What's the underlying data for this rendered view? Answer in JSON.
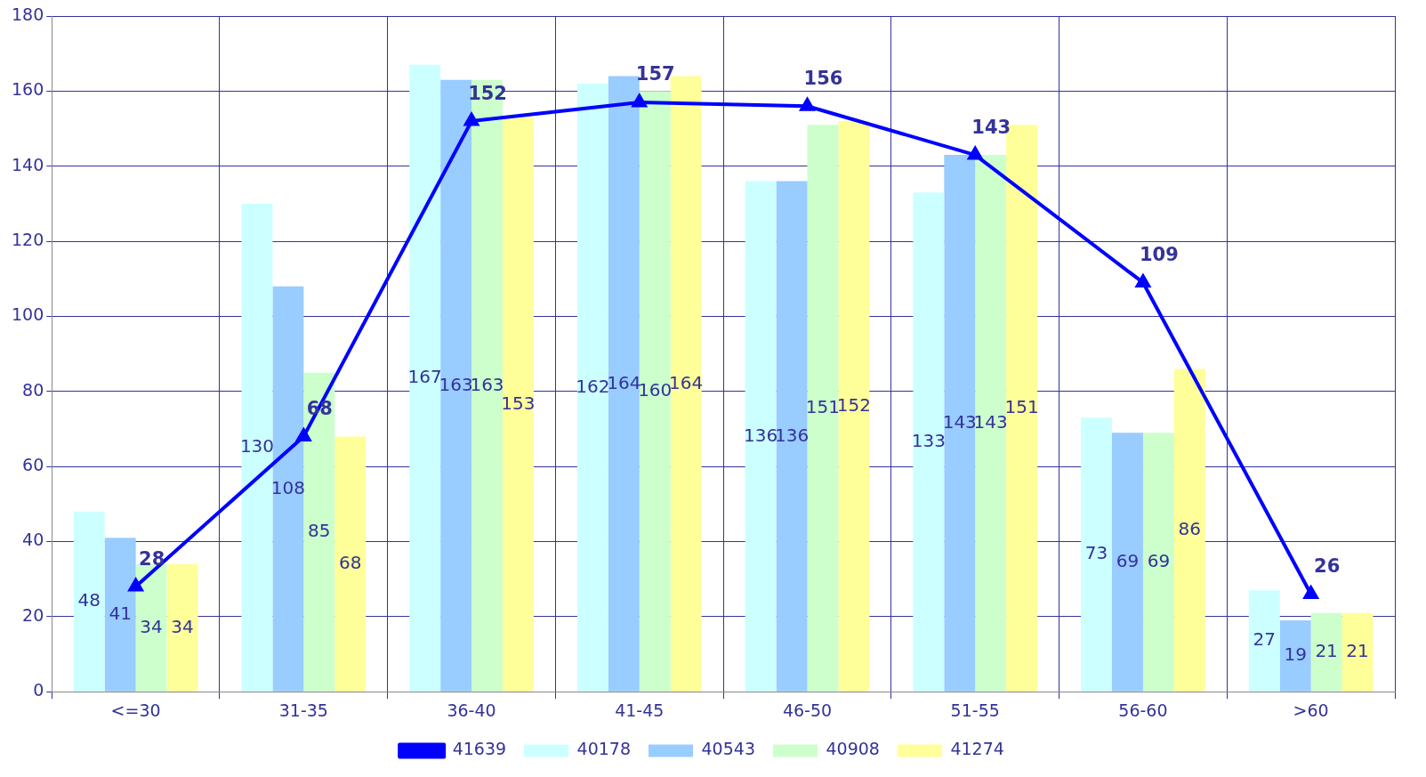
{
  "chart_data": {
    "type": "bar",
    "categories": [
      "<=30",
      "31-35",
      "36-40",
      "41-45",
      "46-50",
      "51-55",
      "56-60",
      ">60"
    ],
    "series": [
      {
        "name": "40178",
        "color": "#ccffff",
        "values": [
          48,
          130,
          167,
          162,
          136,
          133,
          73,
          27
        ]
      },
      {
        "name": "40543",
        "color": "#99ccff",
        "values": [
          41,
          108,
          163,
          164,
          136,
          143,
          69,
          19
        ]
      },
      {
        "name": "40908",
        "color": "#ccffcc",
        "values": [
          34,
          85,
          163,
          160,
          151,
          143,
          69,
          21
        ]
      },
      {
        "name": "41274",
        "color": "#ffff99",
        "values": [
          34,
          68,
          153,
          164,
          152,
          151,
          86,
          21
        ]
      },
      {
        "name": "41639",
        "color": "#0000ff",
        "type": "line",
        "marker": "triangle",
        "values": [
          28,
          68,
          152,
          157,
          156,
          143,
          109,
          26
        ]
      }
    ],
    "ylim": [
      0,
      180
    ],
    "yticks": [
      0,
      20,
      40,
      60,
      80,
      100,
      120,
      140,
      160,
      180
    ],
    "grid": true,
    "legend": "bottom",
    "data_labels": true
  }
}
